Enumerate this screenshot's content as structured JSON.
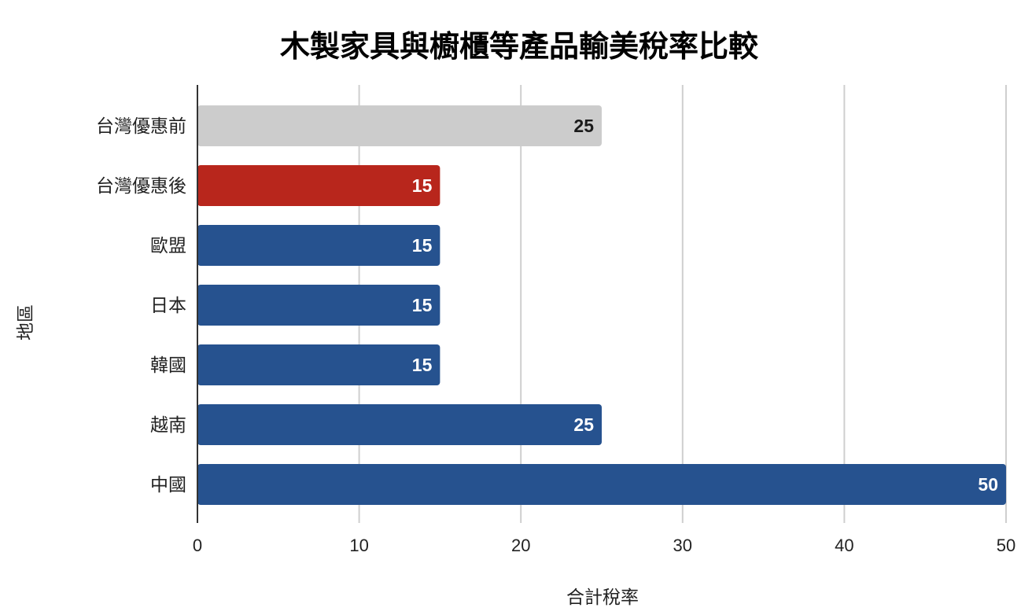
{
  "chart_data": {
    "type": "bar",
    "orientation": "horizontal",
    "title": "木製家具與櫥櫃等產品輸美稅率比較",
    "xlabel": "合計稅率",
    "ylabel": "地區",
    "categories": [
      "台灣優惠前",
      "台灣優惠後",
      "歐盟",
      "日本",
      "韓國",
      "越南",
      "中國"
    ],
    "values": [
      25,
      15,
      15,
      15,
      15,
      25,
      50
    ],
    "data_labels": [
      "25",
      "15",
      "15",
      "15",
      "15",
      "25",
      "50"
    ],
    "xlim": [
      0,
      50
    ],
    "x_ticks": [
      "0",
      "10",
      "20",
      "30",
      "40",
      "50"
    ],
    "grid": true,
    "legend": "none",
    "bar_colors": [
      "#cccccc",
      "#b8261c",
      "#26528f",
      "#26528f",
      "#26528f",
      "#26528f",
      "#26528f"
    ],
    "label_colors": [
      "#1a1a1a",
      "#ffffff",
      "#ffffff",
      "#ffffff",
      "#ffffff",
      "#ffffff",
      "#ffffff"
    ]
  }
}
